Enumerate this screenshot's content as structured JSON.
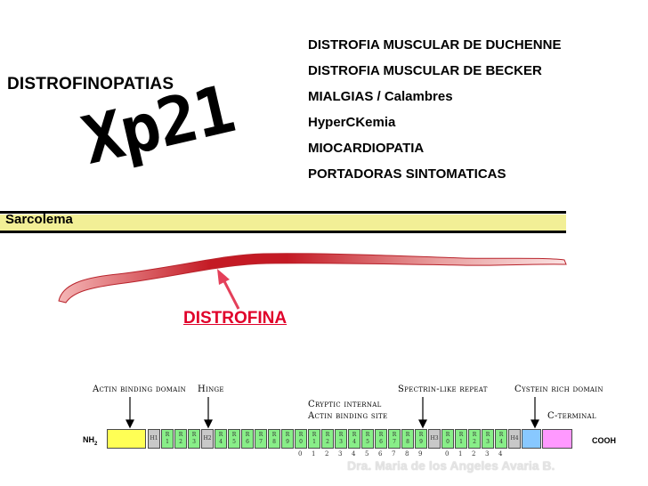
{
  "header": {
    "title": "DISTROFINOPATIAS",
    "locus": "Xp21"
  },
  "conditions": [
    "DISTROFIA MUSCULAR DE DUCHENNE",
    "DISTROFIA MUSCULAR DE BECKER",
    "MIALGIAS / Calambres",
    "HyperCKemia",
    "MIOCARDIOPATIA",
    "PORTADORAS SINTOMATICAS"
  ],
  "membrane": {
    "label": "Sarcolema",
    "band_color": "#f2ef96"
  },
  "protein": {
    "label": "DISTROFINA",
    "color": "#c8101e",
    "label_color": "#e0002a"
  },
  "domains": {
    "actin_binding": "Actin binding domain",
    "hinge": "Hinge",
    "cryptic_line1": "Cryptic internal",
    "cryptic_line2": "Actin binding site",
    "spectrin": "Spectrin-like repeat",
    "cystein": "Cystein rich domain",
    "c_terminal": "C-terminal"
  },
  "map": {
    "n_terminus": "NH",
    "n_sub": "2",
    "c_terminus": "COOH",
    "repeat_letter": "R",
    "hinge_labels": [
      "H1",
      "H2",
      "H3",
      "H4"
    ],
    "repeat_numbers": [
      "1",
      "2",
      "3",
      "4",
      "5",
      "6",
      "7",
      "8",
      "9",
      "10",
      "11",
      "12",
      "13",
      "14",
      "15",
      "16",
      "17",
      "18",
      "19",
      "20",
      "21",
      "22",
      "23",
      "24"
    ],
    "colors": {
      "actin": "#ffff55",
      "hinge": "#c8c8c8",
      "repeat": "#88ee88",
      "cystein": "#88c8ff",
      "cterm": "#ff99ff"
    }
  },
  "credit": "Dra. Maria de los Angeles Avaria B."
}
